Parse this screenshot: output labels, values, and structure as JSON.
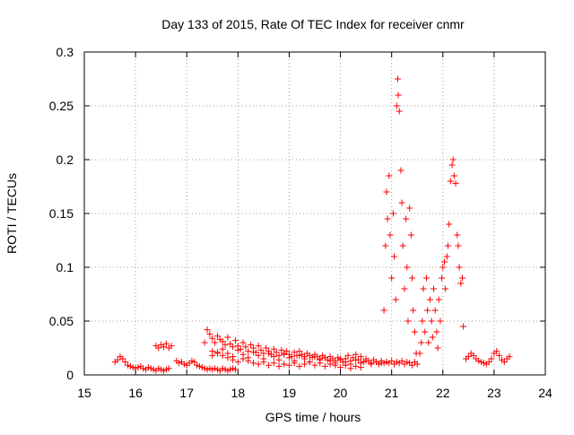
{
  "chart_data": {
    "type": "scatter",
    "title": "Day 133 of 2015, Rate Of TEC Index for receiver cnmr",
    "xlabel": "GPS time / hours",
    "ylabel": "ROTI / TECUs",
    "xlim": [
      15,
      24
    ],
    "ylim": [
      0,
      0.3
    ],
    "grid": true,
    "marker": "+",
    "xticks": [
      "15",
      "16",
      "17",
      "18",
      "19",
      "20",
      "21",
      "22",
      "23",
      "24"
    ],
    "yticks": [
      "0",
      "0.05",
      "0.1",
      "0.15",
      "0.2",
      "0.25",
      "0.3"
    ],
    "series": [
      {
        "name": "ROTI",
        "color": "#ff0000",
        "x": [
          15.6,
          15.65,
          15.7,
          15.75,
          15.8,
          15.85,
          15.9,
          15.95,
          16.0,
          16.05,
          16.1,
          16.15,
          16.2,
          16.25,
          16.3,
          16.35,
          16.4,
          16.45,
          16.5,
          16.55,
          16.6,
          16.65,
          16.4,
          16.45,
          16.5,
          16.55,
          16.6,
          16.65,
          16.7,
          16.8,
          16.85,
          16.9,
          16.95,
          17.0,
          17.05,
          17.1,
          17.15,
          17.2,
          17.25,
          17.3,
          17.35,
          17.4,
          17.45,
          17.5,
          17.55,
          17.6,
          17.65,
          17.7,
          17.75,
          17.8,
          17.85,
          17.9,
          17.95,
          17.35,
          17.4,
          17.45,
          17.5,
          17.55,
          17.6,
          17.65,
          17.7,
          17.75,
          17.8,
          17.85,
          17.9,
          17.95,
          18.0,
          18.05,
          18.1,
          18.15,
          18.2,
          18.25,
          18.3,
          18.35,
          18.4,
          18.45,
          18.5,
          18.55,
          18.6,
          18.65,
          18.7,
          18.75,
          18.8,
          18.85,
          18.9,
          18.95,
          19.0,
          19.05,
          19.1,
          19.15,
          19.2,
          19.25,
          19.3,
          19.35,
          19.4,
          19.45,
          19.5,
          19.55,
          19.6,
          19.65,
          19.7,
          19.75,
          19.8,
          19.85,
          19.9,
          19.95,
          20.0,
          20.05,
          20.1,
          20.15,
          20.2,
          20.25,
          20.3,
          20.35,
          20.4,
          20.45,
          20.5,
          20.55,
          20.6,
          20.65,
          20.7,
          20.75,
          20.8,
          20.85,
          20.9,
          17.5,
          17.6,
          17.7,
          17.8,
          17.9,
          18.0,
          18.1,
          18.2,
          18.3,
          18.4,
          18.5,
          18.6,
          18.7,
          18.8,
          18.9,
          19.0,
          19.1,
          19.2,
          19.3,
          19.4,
          19.5,
          19.6,
          19.7,
          19.8,
          19.9,
          20.0,
          20.1,
          20.2,
          20.3,
          20.4,
          17.5,
          17.6,
          17.7,
          17.8,
          17.9,
          18.0,
          18.1,
          18.2,
          18.3,
          18.4,
          18.5,
          18.6,
          18.7,
          18.8,
          18.9,
          19.0,
          19.1,
          19.2,
          19.3,
          19.4,
          19.5,
          19.6,
          19.7,
          19.8,
          19.9,
          20.0,
          20.1,
          20.2,
          20.3,
          20.4,
          20.5,
          20.6,
          20.7,
          20.8,
          20.9,
          20.95,
          21.0,
          21.05,
          21.1,
          21.15,
          21.2,
          21.25,
          21.3,
          21.35,
          21.4,
          21.45,
          21.5,
          20.85,
          20.88,
          20.9,
          20.92,
          20.95,
          20.97,
          21.0,
          21.03,
          21.05,
          21.08,
          21.1,
          21.12,
          21.13,
          21.15,
          21.18,
          21.2,
          21.22,
          21.25,
          21.28,
          21.3,
          21.32,
          21.35,
          21.38,
          21.4,
          21.42,
          21.45,
          21.48,
          21.55,
          21.58,
          21.6,
          21.62,
          21.65,
          21.68,
          21.7,
          21.72,
          21.75,
          21.78,
          21.8,
          21.82,
          21.85,
          21.88,
          21.9,
          21.92,
          21.95,
          21.98,
          22.0,
          22.03,
          22.05,
          22.08,
          22.1,
          22.12,
          22.15,
          22.18,
          22.2,
          22.22,
          22.25,
          22.28,
          22.3,
          22.32,
          22.35,
          22.38,
          22.4,
          22.45,
          22.5,
          22.55,
          22.6,
          22.65,
          22.7,
          22.75,
          22.8,
          22.85,
          22.9,
          22.95,
          23.0,
          23.05,
          23.1,
          23.15,
          23.2,
          23.25,
          23.3
        ],
        "y": [
          0.012,
          0.014,
          0.017,
          0.015,
          0.012,
          0.009,
          0.008,
          0.007,
          0.006,
          0.007,
          0.008,
          0.006,
          0.005,
          0.007,
          0.006,
          0.005,
          0.004,
          0.006,
          0.005,
          0.004,
          0.005,
          0.006,
          0.027,
          0.025,
          0.028,
          0.026,
          0.029,
          0.025,
          0.027,
          0.013,
          0.011,
          0.012,
          0.01,
          0.009,
          0.011,
          0.013,
          0.012,
          0.009,
          0.008,
          0.007,
          0.006,
          0.005,
          0.006,
          0.005,
          0.006,
          0.005,
          0.004,
          0.006,
          0.005,
          0.004,
          0.005,
          0.006,
          0.005,
          0.03,
          0.042,
          0.038,
          0.034,
          0.03,
          0.036,
          0.033,
          0.031,
          0.028,
          0.035,
          0.029,
          0.026,
          0.032,
          0.027,
          0.024,
          0.03,
          0.026,
          0.022,
          0.028,
          0.025,
          0.021,
          0.027,
          0.023,
          0.02,
          0.025,
          0.022,
          0.019,
          0.024,
          0.021,
          0.018,
          0.023,
          0.02,
          0.022,
          0.019,
          0.017,
          0.021,
          0.018,
          0.022,
          0.019,
          0.017,
          0.02,
          0.018,
          0.016,
          0.019,
          0.017,
          0.015,
          0.018,
          0.016,
          0.014,
          0.017,
          0.015,
          0.013,
          0.016,
          0.014,
          0.012,
          0.015,
          0.018,
          0.013,
          0.016,
          0.019,
          0.014,
          0.017,
          0.012,
          0.015,
          0.013,
          0.011,
          0.014,
          0.012,
          0.01,
          0.013,
          0.011,
          0.012,
          0.022,
          0.02,
          0.018,
          0.016,
          0.014,
          0.012,
          0.015,
          0.013,
          0.011,
          0.01,
          0.012,
          0.009,
          0.011,
          0.008,
          0.01,
          0.009,
          0.011,
          0.008,
          0.01,
          0.012,
          0.009,
          0.011,
          0.008,
          0.01,
          0.009,
          0.007,
          0.009,
          0.006,
          0.008,
          0.007,
          0.018,
          0.021,
          0.024,
          0.02,
          0.017,
          0.023,
          0.019,
          0.016,
          0.021,
          0.018,
          0.015,
          0.02,
          0.017,
          0.014,
          0.019,
          0.016,
          0.013,
          0.018,
          0.015,
          0.012,
          0.017,
          0.014,
          0.016,
          0.013,
          0.011,
          0.015,
          0.012,
          0.01,
          0.014,
          0.011,
          0.013,
          0.01,
          0.012,
          0.011,
          0.012,
          0.011,
          0.013,
          0.01,
          0.012,
          0.011,
          0.013,
          0.01,
          0.012,
          0.011,
          0.009,
          0.012,
          0.01,
          0.06,
          0.12,
          0.17,
          0.145,
          0.185,
          0.13,
          0.09,
          0.15,
          0.11,
          0.07,
          0.25,
          0.275,
          0.26,
          0.245,
          0.19,
          0.16,
          0.12,
          0.08,
          0.145,
          0.1,
          0.05,
          0.155,
          0.13,
          0.09,
          0.06,
          0.04,
          0.02,
          0.02,
          0.03,
          0.05,
          0.08,
          0.04,
          0.09,
          0.06,
          0.03,
          0.07,
          0.05,
          0.035,
          0.08,
          0.06,
          0.04,
          0.025,
          0.07,
          0.05,
          0.09,
          0.1,
          0.105,
          0.08,
          0.11,
          0.12,
          0.14,
          0.18,
          0.195,
          0.2,
          0.185,
          0.178,
          0.13,
          0.12,
          0.1,
          0.085,
          0.09,
          0.045,
          0.015,
          0.017,
          0.02,
          0.018,
          0.015,
          0.013,
          0.012,
          0.011,
          0.01,
          0.012,
          0.015,
          0.02,
          0.022,
          0.018,
          0.014,
          0.012,
          0.015,
          0.017
        ]
      }
    ]
  }
}
